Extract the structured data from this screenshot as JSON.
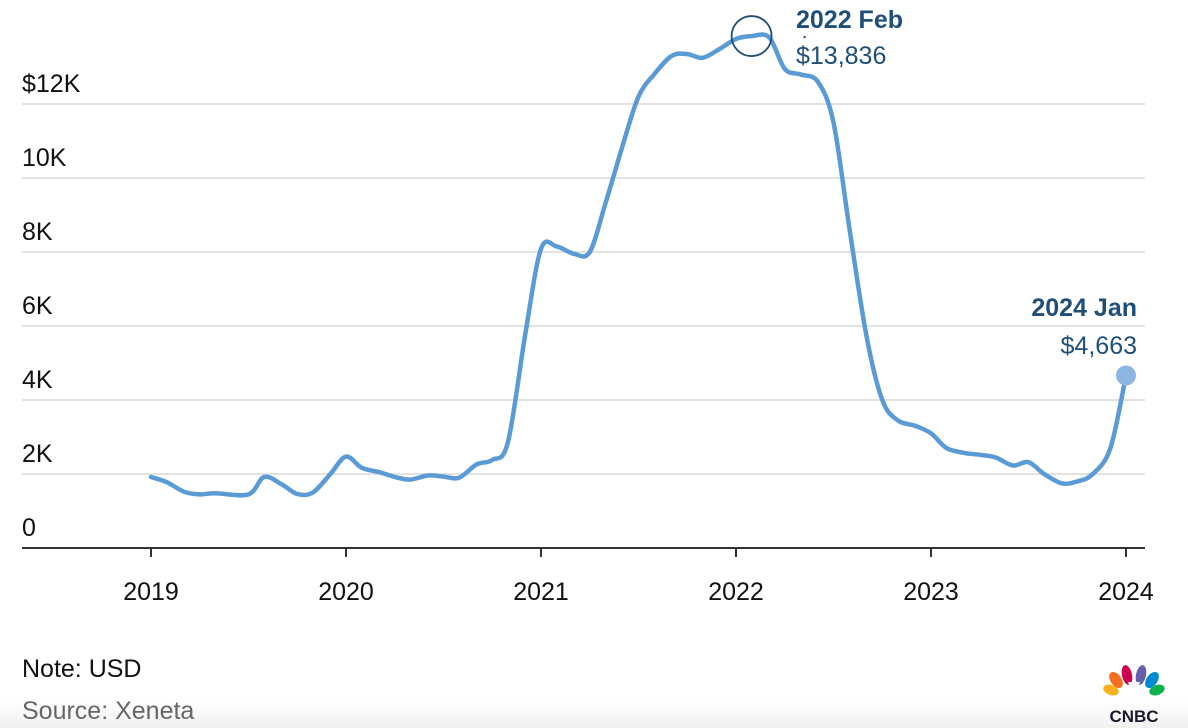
{
  "chart_data": {
    "type": "line",
    "title": "",
    "xlabel": "",
    "ylabel": "",
    "ylim": [
      0,
      14000
    ],
    "xlim": [
      2018.5,
      2024.1
    ],
    "grid": true,
    "y_ticks": [
      0,
      2000,
      4000,
      6000,
      8000,
      10000,
      12000
    ],
    "y_tick_labels": [
      "0",
      "2K",
      "4K",
      "6K",
      "8K",
      "10K",
      "$12K"
    ],
    "x_ticks": [
      2019,
      2020,
      2021,
      2022,
      2023,
      2024
    ],
    "x_tick_labels": [
      "2019",
      "2020",
      "2021",
      "2022",
      "2023",
      "2024"
    ],
    "series": [
      {
        "color": "#5b9bd5",
        "points": [
          [
            2019.0,
            1920
          ],
          [
            2019.08,
            1780
          ],
          [
            2019.17,
            1520
          ],
          [
            2019.25,
            1450
          ],
          [
            2019.33,
            1480
          ],
          [
            2019.5,
            1450
          ],
          [
            2019.58,
            1920
          ],
          [
            2019.67,
            1720
          ],
          [
            2019.75,
            1460
          ],
          [
            2019.83,
            1500
          ],
          [
            2019.92,
            2000
          ],
          [
            2020.0,
            2470
          ],
          [
            2020.08,
            2170
          ],
          [
            2020.17,
            2050
          ],
          [
            2020.25,
            1920
          ],
          [
            2020.33,
            1850
          ],
          [
            2020.42,
            1960
          ],
          [
            2020.5,
            1930
          ],
          [
            2020.58,
            1900
          ],
          [
            2020.67,
            2260
          ],
          [
            2020.75,
            2380
          ],
          [
            2020.83,
            2850
          ],
          [
            2020.92,
            5800
          ],
          [
            2021.0,
            8080
          ],
          [
            2021.08,
            8150
          ],
          [
            2021.17,
            7950
          ],
          [
            2021.25,
            8000
          ],
          [
            2021.33,
            9300
          ],
          [
            2021.42,
            10900
          ],
          [
            2021.5,
            12200
          ],
          [
            2021.58,
            12800
          ],
          [
            2021.67,
            13300
          ],
          [
            2021.75,
            13350
          ],
          [
            2021.83,
            13250
          ],
          [
            2021.92,
            13500
          ],
          [
            2022.0,
            13760
          ],
          [
            2022.08,
            13836
          ],
          [
            2022.17,
            13800
          ],
          [
            2022.25,
            12950
          ],
          [
            2022.33,
            12800
          ],
          [
            2022.42,
            12600
          ],
          [
            2022.5,
            11500
          ],
          [
            2022.58,
            8700
          ],
          [
            2022.67,
            5700
          ],
          [
            2022.75,
            4000
          ],
          [
            2022.83,
            3450
          ],
          [
            2022.92,
            3300
          ],
          [
            2023.0,
            3100
          ],
          [
            2023.08,
            2700
          ],
          [
            2023.17,
            2570
          ],
          [
            2023.25,
            2520
          ],
          [
            2023.33,
            2450
          ],
          [
            2023.42,
            2230
          ],
          [
            2023.5,
            2320
          ],
          [
            2023.58,
            2000
          ],
          [
            2023.67,
            1750
          ],
          [
            2023.75,
            1800
          ],
          [
            2023.83,
            2000
          ],
          [
            2023.92,
            2700
          ],
          [
            2024.0,
            4663
          ]
        ]
      }
    ],
    "annotations": [
      {
        "x": 2022.08,
        "y": 13836,
        "label": "2022 Feb",
        "value": "$13,836",
        "marker": "ring"
      },
      {
        "x": 2024.0,
        "y": 4663,
        "label": "2024 Jan",
        "value": "$4,663",
        "marker": "dot"
      }
    ]
  },
  "footer": {
    "note": "Note: USD",
    "source": "Source: Xeneta",
    "logo_text": "CNBC"
  },
  "colors": {
    "line": "#5b9bd5",
    "annotation_text": "#1f4e79",
    "ring": "#1f4e79",
    "dot": "#8db6e2",
    "grid": "#d9d9d9",
    "axis": "#333333"
  }
}
